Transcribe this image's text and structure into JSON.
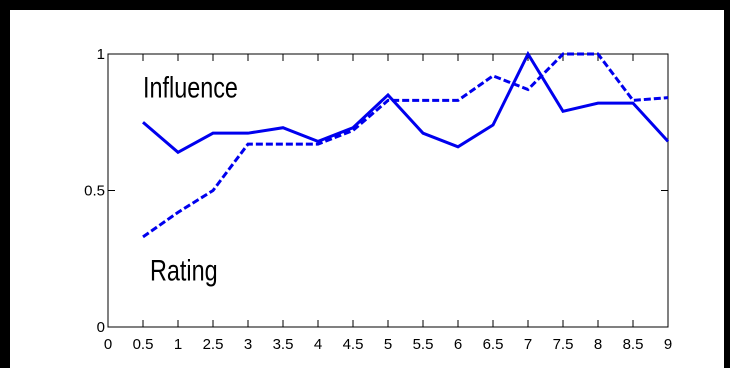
{
  "chart_data": {
    "type": "line",
    "x_tick_labels": [
      "0",
      "0.5",
      "1",
      "2.5",
      "3",
      "3.5",
      "4",
      "4.5",
      "5",
      "5.5",
      "6",
      "6.5",
      "7",
      "7.5",
      "8",
      "8.5",
      "9"
    ],
    "y_ticks": [
      0,
      0.5,
      1
    ],
    "y_tick_labels": [
      "0",
      "0.5",
      "1"
    ],
    "xlim": [
      0,
      16
    ],
    "ylim": [
      0,
      1
    ],
    "grid": false,
    "line_color": "#0000ee",
    "series": [
      {
        "name": "Influence",
        "style": "solid",
        "x": [
          1,
          2,
          3,
          4,
          5,
          6,
          7,
          8,
          9,
          10,
          11,
          12,
          13,
          14,
          15,
          16
        ],
        "values": [
          0.75,
          0.64,
          0.71,
          0.71,
          0.73,
          0.68,
          0.73,
          0.85,
          0.71,
          0.66,
          0.74,
          1.0,
          0.79,
          0.82,
          0.82,
          0.68
        ]
      },
      {
        "name": "Rating",
        "style": "dashed",
        "x": [
          1,
          2,
          3,
          4,
          5,
          6,
          7,
          8,
          9,
          10,
          11,
          12,
          13,
          14,
          15,
          16
        ],
        "values": [
          0.33,
          0.42,
          0.5,
          0.67,
          0.67,
          0.67,
          0.72,
          0.83,
          0.83,
          0.83,
          0.92,
          0.87,
          1.0,
          1.0,
          0.83,
          0.84
        ]
      }
    ],
    "annotations": [
      {
        "text": "Influence",
        "x": 1,
        "y": 0.84
      },
      {
        "text": "Rating",
        "x": 1.2,
        "y": 0.17
      }
    ]
  }
}
